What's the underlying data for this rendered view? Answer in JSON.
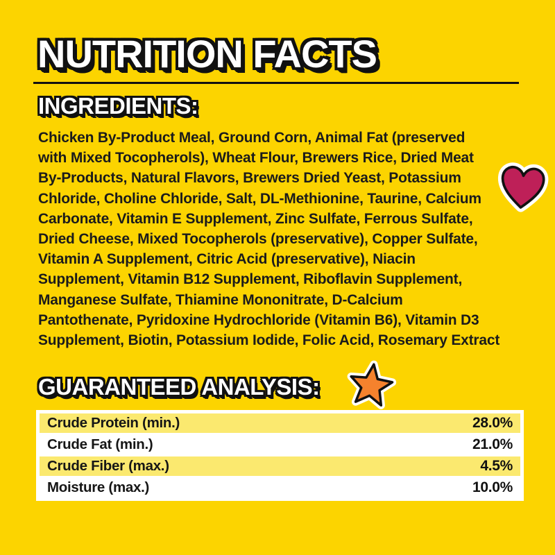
{
  "page": {
    "title": "NUTRITION FACTS"
  },
  "ingredients": {
    "heading": "INGREDIENTS:",
    "lines": [
      "Chicken By-Product Meal, Ground Corn, Animal Fat (preserved",
      "with Mixed Tocopherols), Wheat Flour, Brewers Rice, Dried Meat",
      "By-Products, Natural Flavors, Brewers Dried Yeast, Potassium",
      "Chloride, Choline Chloride, Salt, DL-Methionine, Taurine, Calcium",
      "Carbonate, Vitamin E Supplement, Zinc Sulfate, Ferrous Sulfate,",
      "Dried Cheese, Mixed Tocopherols (preservative), Copper Sulfate,",
      "Vitamin A Supplement, Citric Acid (preservative), Niacin",
      "Supplement, Vitamin B12 Supplement, Riboflavin Supplement,",
      "Manganese Sulfate, Thiamine Mononitrate, D-Calcium",
      "Pantothenate, Pyridoxine Hydrochloride (Vitamin B6), Vitamin D3",
      "Supplement, Biotin, Potassium Iodide, Folic Acid, Rosemary Extract"
    ]
  },
  "analysis": {
    "heading": "GUARANTEED ANALYSIS:",
    "rows": [
      {
        "label": "Crude Protein (min.)",
        "value": "28.0%"
      },
      {
        "label": "Crude Fat (min.)",
        "value": "21.0%"
      },
      {
        "label": "Crude Fiber (max.)",
        "value": "4.5%"
      },
      {
        "label": "Moisture (max.)",
        "value": "10.0%"
      }
    ]
  },
  "icons": {
    "heart": {
      "name": "heart-icon",
      "color": "#BE2058"
    },
    "star": {
      "name": "star-icon",
      "color": "#F5822D"
    }
  },
  "colors": {
    "background": "#FCD400",
    "row_highlight": "#FBE96F",
    "row_plain": "#FFFFFF",
    "divider": "#111111",
    "text": "#1B1B1B"
  }
}
